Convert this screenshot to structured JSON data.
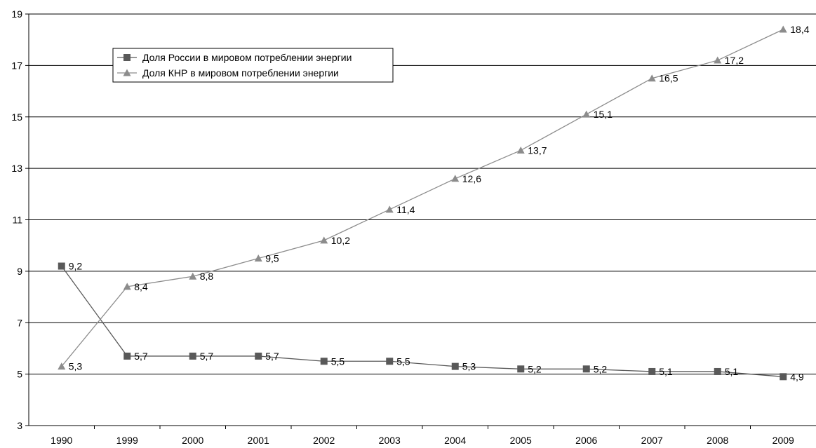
{
  "chart_data": {
    "type": "line",
    "categories": [
      "1990",
      "1999",
      "2000",
      "2001",
      "2002",
      "2003",
      "2004",
      "2005",
      "2006",
      "2007",
      "2008",
      "2009"
    ],
    "ylim": [
      3,
      19
    ],
    "yticks": [
      3,
      5,
      7,
      9,
      11,
      13,
      15,
      17,
      19
    ],
    "grid": true,
    "legend": "top-left",
    "series": [
      {
        "name": "Доля России в мировом потреблении энергии",
        "marker": "square",
        "color": "#595959",
        "values": [
          9.2,
          5.7,
          5.7,
          5.7,
          5.5,
          5.5,
          5.3,
          5.2,
          5.2,
          5.1,
          5.1,
          4.9
        ],
        "labels": [
          "9,2",
          "5,7",
          "5,7",
          "5,7",
          "5,5",
          "5,5",
          "5,3",
          "5,2",
          "5,2",
          "5,1",
          "5,1",
          "4,9"
        ]
      },
      {
        "name": "Доля КНР в мировом потреблении энергии",
        "marker": "triangle",
        "color": "#8c8c8c",
        "values": [
          5.3,
          8.4,
          8.8,
          9.5,
          10.2,
          11.4,
          12.6,
          13.7,
          15.1,
          16.5,
          17.2,
          18.4
        ],
        "labels": [
          "5,3",
          "8,4",
          "8,8",
          "9,5",
          "10,2",
          "11,4",
          "12,6",
          "13,7",
          "15,1",
          "16,5",
          "17,2",
          "18,4"
        ]
      }
    ]
  }
}
